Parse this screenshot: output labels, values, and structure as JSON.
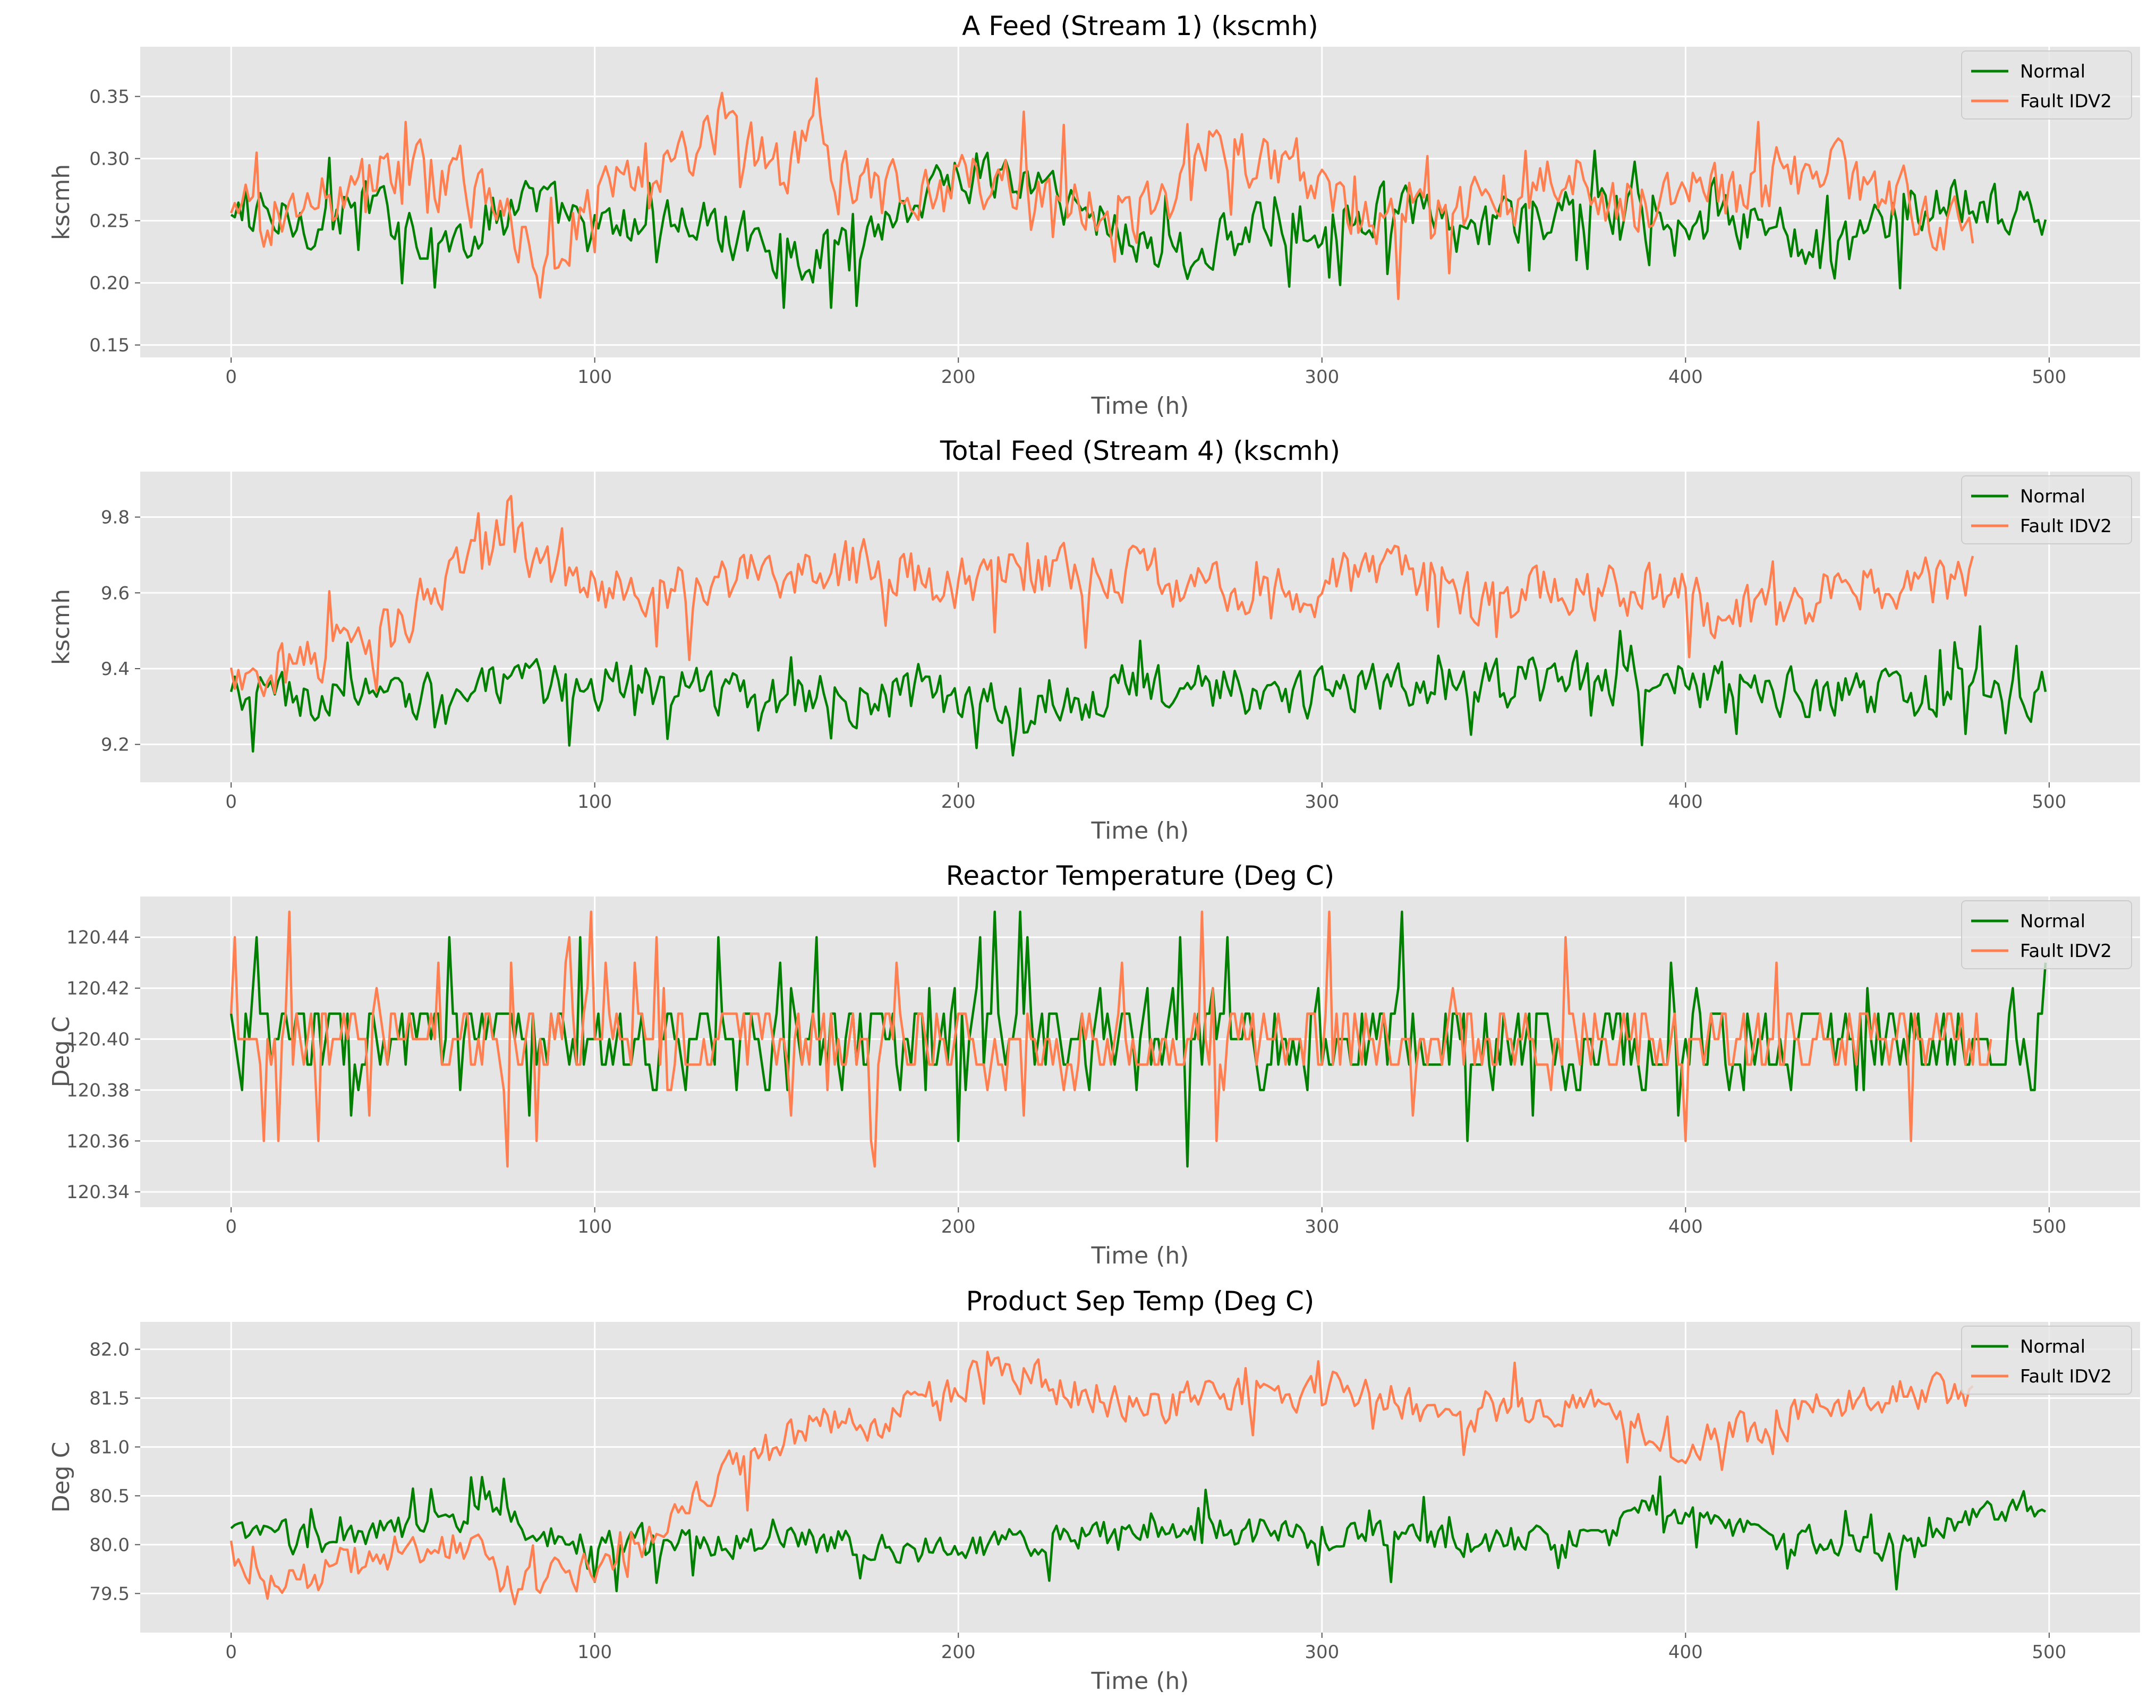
{
  "figure": {
    "background": "#ffffff",
    "plot_background": "#e5e5e5",
    "grid_color": "#ffffff"
  },
  "chart_data": [
    {
      "type": "line",
      "title": "A Feed (Stream 1) (kscmh)",
      "xlabel": "Time (h)",
      "ylabel": "kscmh",
      "xlim": [
        -25,
        525
      ],
      "ylim": [
        0.14,
        0.39
      ],
      "xticks": [
        0,
        100,
        200,
        300,
        400,
        500
      ],
      "yticks": [
        "0.15",
        "0.20",
        "0.25",
        "0.30",
        "0.35"
      ],
      "legend_position": "top-right",
      "series": [
        {
          "name": "Normal",
          "color": "#008000",
          "length": 500,
          "anchors": [
            [
              0,
              0.25
            ],
            [
              20,
              0.25
            ],
            [
              40,
              0.26
            ],
            [
              60,
              0.23
            ],
            [
              80,
              0.27
            ],
            [
              100,
              0.24
            ],
            [
              120,
              0.25
            ],
            [
              140,
              0.24
            ],
            [
              160,
              0.22
            ],
            [
              180,
              0.25
            ],
            [
              200,
              0.29
            ],
            [
              220,
              0.28
            ],
            [
              240,
              0.25
            ],
            [
              260,
              0.22
            ],
            [
              280,
              0.24
            ],
            [
              300,
              0.25
            ],
            [
              320,
              0.26
            ],
            [
              340,
              0.24
            ],
            [
              360,
              0.25
            ],
            [
              380,
              0.26
            ],
            [
              400,
              0.24
            ],
            [
              420,
              0.25
            ],
            [
              440,
              0.22
            ],
            [
              460,
              0.26
            ],
            [
              480,
              0.26
            ],
            [
              499,
              0.25
            ]
          ],
          "noise": 0.03,
          "spike": 0.05,
          "min": 0.18,
          "max": 0.345
        },
        {
          "name": "Fault IDV2",
          "color": "#ff7f50",
          "length": 480,
          "anchors": [
            [
              0,
              0.25
            ],
            [
              20,
              0.26
            ],
            [
              40,
              0.29
            ],
            [
              60,
              0.28
            ],
            [
              80,
              0.24
            ],
            [
              85,
              0.21
            ],
            [
              100,
              0.27
            ],
            [
              120,
              0.29
            ],
            [
              135,
              0.33
            ],
            [
              150,
              0.29
            ],
            [
              160,
              0.31
            ],
            [
              180,
              0.27
            ],
            [
              200,
              0.28
            ],
            [
              220,
              0.28
            ],
            [
              240,
              0.26
            ],
            [
              260,
              0.26
            ],
            [
              270,
              0.31
            ],
            [
              290,
              0.29
            ],
            [
              310,
              0.26
            ],
            [
              330,
              0.25
            ],
            [
              350,
              0.27
            ],
            [
              370,
              0.28
            ],
            [
              390,
              0.26
            ],
            [
              410,
              0.27
            ],
            [
              430,
              0.29
            ],
            [
              450,
              0.28
            ],
            [
              460,
              0.27
            ],
            [
              479,
              0.24
            ]
          ],
          "noise": 0.035,
          "spike": 0.05,
          "min": 0.155,
          "max": 0.378
        }
      ]
    },
    {
      "type": "line",
      "title": "Total Feed (Stream 4) (kscmh)",
      "xlabel": "Time (h)",
      "ylabel": "kscmh",
      "xlim": [
        -25,
        525
      ],
      "ylim": [
        9.1,
        9.92
      ],
      "xticks": [
        0,
        100,
        200,
        300,
        400,
        500
      ],
      "yticks": [
        "9.2",
        "9.4",
        "9.6",
        "9.8"
      ],
      "legend_position": "top-right",
      "series": [
        {
          "name": "Normal",
          "color": "#008000",
          "length": 500,
          "anchors": [
            [
              0,
              9.32
            ],
            [
              50,
              9.33
            ],
            [
              100,
              9.36
            ],
            [
              150,
              9.33
            ],
            [
              200,
              9.32
            ],
            [
              250,
              9.34
            ],
            [
              300,
              9.34
            ],
            [
              340,
              9.36
            ],
            [
              400,
              9.36
            ],
            [
              450,
              9.33
            ],
            [
              499,
              9.34
            ]
          ],
          "noise": 0.09,
          "spike": 0.12,
          "min": 9.13,
          "max": 9.59
        },
        {
          "name": "Fault IDV2",
          "color": "#ff7f50",
          "length": 480,
          "anchors": [
            [
              0,
              9.38
            ],
            [
              20,
              9.42
            ],
            [
              40,
              9.46
            ],
            [
              60,
              9.66
            ],
            [
              75,
              9.74
            ],
            [
              95,
              9.64
            ],
            [
              110,
              9.6
            ],
            [
              130,
              9.62
            ],
            [
              150,
              9.66
            ],
            [
              175,
              9.67
            ],
            [
              200,
              9.62
            ],
            [
              220,
              9.66
            ],
            [
              240,
              9.67
            ],
            [
              260,
              9.63
            ],
            [
              280,
              9.6
            ],
            [
              300,
              9.62
            ],
            [
              320,
              9.66
            ],
            [
              340,
              9.58
            ],
            [
              370,
              9.6
            ],
            [
              400,
              9.62
            ],
            [
              410,
              9.52
            ],
            [
              430,
              9.57
            ],
            [
              450,
              9.64
            ],
            [
              479,
              9.63
            ]
          ],
          "noise": 0.1,
          "spike": 0.13,
          "min": 9.22,
          "max": 9.88
        }
      ]
    },
    {
      "type": "line",
      "title": "Reactor Temperature (Deg C)",
      "xlabel": "Time (h)",
      "ylabel": "Deg C",
      "xlim": [
        -25,
        525
      ],
      "ylim": [
        120.334,
        120.456
      ],
      "xticks": [
        0,
        100,
        200,
        300,
        400,
        500
      ],
      "yticks": [
        "120.34",
        "120.36",
        "120.38",
        "120.40",
        "120.42",
        "120.44"
      ],
      "legend_position": "top-right",
      "series": [
        {
          "name": "Normal",
          "color": "#008000",
          "length": 500,
          "anchors": [
            [
              0,
              120.4
            ],
            [
              499,
              120.4
            ]
          ],
          "noise": 0.022,
          "spike": 0.04,
          "step": 0.01,
          "min": 120.35,
          "max": 120.45
        },
        {
          "name": "Fault IDV2",
          "color": "#ff7f50",
          "length": 485,
          "anchors": [
            [
              0,
              120.4
            ],
            [
              484,
              120.4
            ]
          ],
          "noise": 0.02,
          "spike": 0.045,
          "step": 0.01,
          "min": 120.34,
          "max": 120.45
        }
      ]
    },
    {
      "type": "line",
      "title": "Product Sep Temp (Deg C)",
      "xlabel": "Time (h)",
      "ylabel": "Deg C",
      "xlim": [
        -25,
        525
      ],
      "ylim": [
        79.1,
        82.28
      ],
      "xticks": [
        0,
        100,
        200,
        300,
        400,
        500
      ],
      "yticks": [
        "79.5",
        "80.0",
        "80.5",
        "81.0",
        "81.5",
        "82.0"
      ],
      "legend_position": "top-right",
      "series": [
        {
          "name": "Normal",
          "color": "#008000",
          "length": 500,
          "anchors": [
            [
              0,
              80.1
            ],
            [
              30,
              80.05
            ],
            [
              60,
              80.25
            ],
            [
              70,
              80.4
            ],
            [
              90,
              80.05
            ],
            [
              120,
              80.0
            ],
            [
              150,
              80.05
            ],
            [
              200,
              79.95
            ],
            [
              250,
              80.15
            ],
            [
              300,
              80.1
            ],
            [
              350,
              80.0
            ],
            [
              380,
              80.1
            ],
            [
              390,
              80.4
            ],
            [
              410,
              80.2
            ],
            [
              440,
              80.0
            ],
            [
              460,
              80.0
            ],
            [
              480,
              80.3
            ],
            [
              499,
              80.45
            ]
          ],
          "noise": 0.22,
          "spike": 0.4,
          "min": 79.42,
          "max": 80.7
        },
        {
          "name": "Fault IDV2",
          "color": "#ff7f50",
          "length": 480,
          "anchors": [
            [
              0,
              79.95
            ],
            [
              20,
              79.65
            ],
            [
              40,
              79.9
            ],
            [
              60,
              80.05
            ],
            [
              80,
              79.55
            ],
            [
              100,
              79.75
            ],
            [
              115,
              80.05
            ],
            [
              130,
              80.6
            ],
            [
              150,
              81.0
            ],
            [
              160,
              81.2
            ],
            [
              180,
              81.3
            ],
            [
              200,
              81.6
            ],
            [
              210,
              81.85
            ],
            [
              230,
              81.6
            ],
            [
              250,
              81.45
            ],
            [
              270,
              81.5
            ],
            [
              300,
              81.6
            ],
            [
              320,
              81.5
            ],
            [
              340,
              81.35
            ],
            [
              360,
              81.4
            ],
            [
              380,
              81.35
            ],
            [
              395,
              81.0
            ],
            [
              420,
              81.2
            ],
            [
              440,
              81.45
            ],
            [
              460,
              81.55
            ],
            [
              479,
              81.55
            ]
          ],
          "noise": 0.28,
          "spike": 0.4,
          "min": 79.2,
          "max": 82.15
        }
      ]
    }
  ]
}
